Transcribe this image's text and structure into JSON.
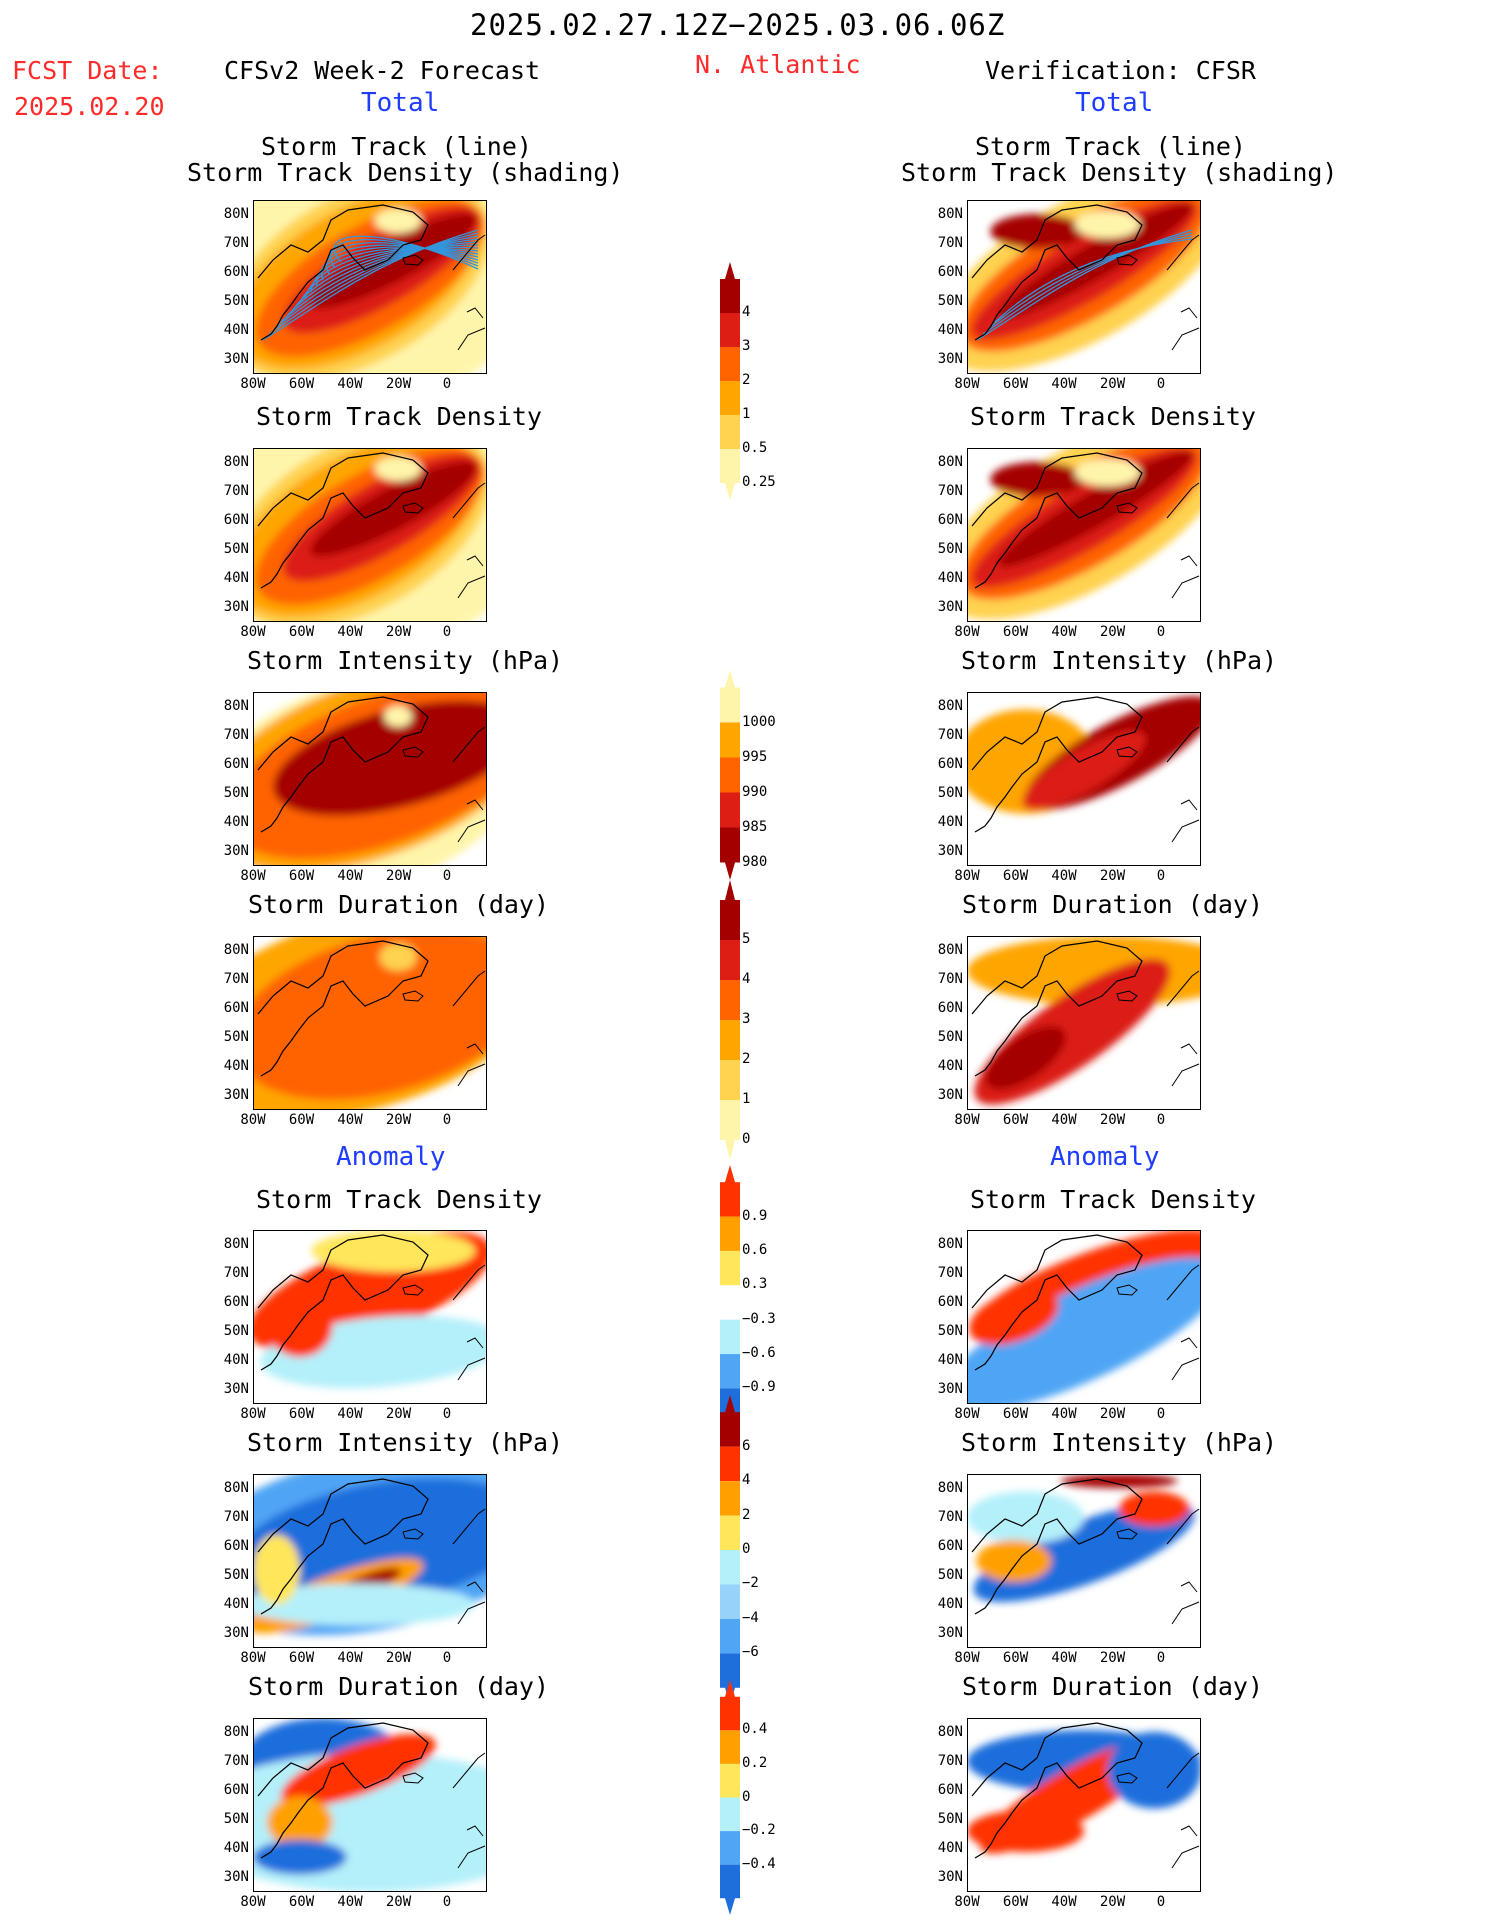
{
  "header": {
    "period": "2025.02.27.12Z−2025.03.06.06Z",
    "fcst_label": "FCST Date:",
    "fcst_date": "2025.02.20",
    "left_title": "CFSv2 Week-2 Forecast",
    "region": "N. Atlantic",
    "right_title": "Verification: CFSR",
    "total_left": "Total",
    "total_right": "Total",
    "anomaly_left": "Anomaly",
    "anomaly_right": "Anomaly"
  },
  "panel_titles": {
    "track_line": "Storm Track (line)",
    "track_density_shading": "Storm Track Density (shading)",
    "track_density": "Storm Track Density",
    "intensity": "Storm Intensity (hPa)",
    "duration": "Storm Duration (day)"
  },
  "axes": {
    "lat_labels": [
      "80N",
      "70N",
      "60N",
      "50N",
      "40N",
      "30N"
    ],
    "lon_labels": [
      "80W",
      "60W",
      "40W",
      "20W",
      "0"
    ]
  },
  "colorbars": {
    "density_total": {
      "labels": [
        "4",
        "3",
        "2",
        "1",
        "0.5",
        "0.25"
      ],
      "colors": [
        "#a50000",
        "#dc1e14",
        "#ff6400",
        "#ffa500",
        "#ffd250",
        "#fff5aa"
      ]
    },
    "intensity_total": {
      "labels": [
        "1000",
        "995",
        "990",
        "985",
        "980"
      ],
      "colors": [
        "#fff5aa",
        "#ffa500",
        "#ff6400",
        "#dc1e14",
        "#a50000"
      ]
    },
    "duration_total": {
      "labels": [
        "5",
        "4",
        "3",
        "2",
        "1",
        "0"
      ],
      "colors": [
        "#a50000",
        "#dc1e14",
        "#ff6400",
        "#ffa500",
        "#ffd250",
        "#fff5aa"
      ]
    },
    "density_anom": {
      "labels": [
        "0.9",
        "0.6",
        "0.3",
        "−0.3",
        "−0.6",
        "−0.9"
      ],
      "colors": [
        "#ff3200",
        "#ffa000",
        "#ffe65a",
        "#ffffff",
        "#b4f0fa",
        "#50a5f5",
        "#1e6edc"
      ]
    },
    "intensity_anom": {
      "labels": [
        "6",
        "4",
        "2",
        "0",
        "−2",
        "−4",
        "−6"
      ],
      "colors": [
        "#a50000",
        "#ff3200",
        "#ffa000",
        "#ffe65a",
        "#b4f0fa",
        "#96d2fa",
        "#50a5f5",
        "#1e6edc"
      ]
    },
    "duration_anom": {
      "labels": [
        "0.4",
        "0.2",
        "0",
        "−0.2",
        "−0.4"
      ],
      "colors": [
        "#ff3200",
        "#ffa000",
        "#ffe65a",
        "#b4f0fa",
        "#50a5f5",
        "#1e6edc"
      ]
    }
  },
  "map_colors": {
    "track_line": "#3296dc",
    "coast": "#000000"
  }
}
